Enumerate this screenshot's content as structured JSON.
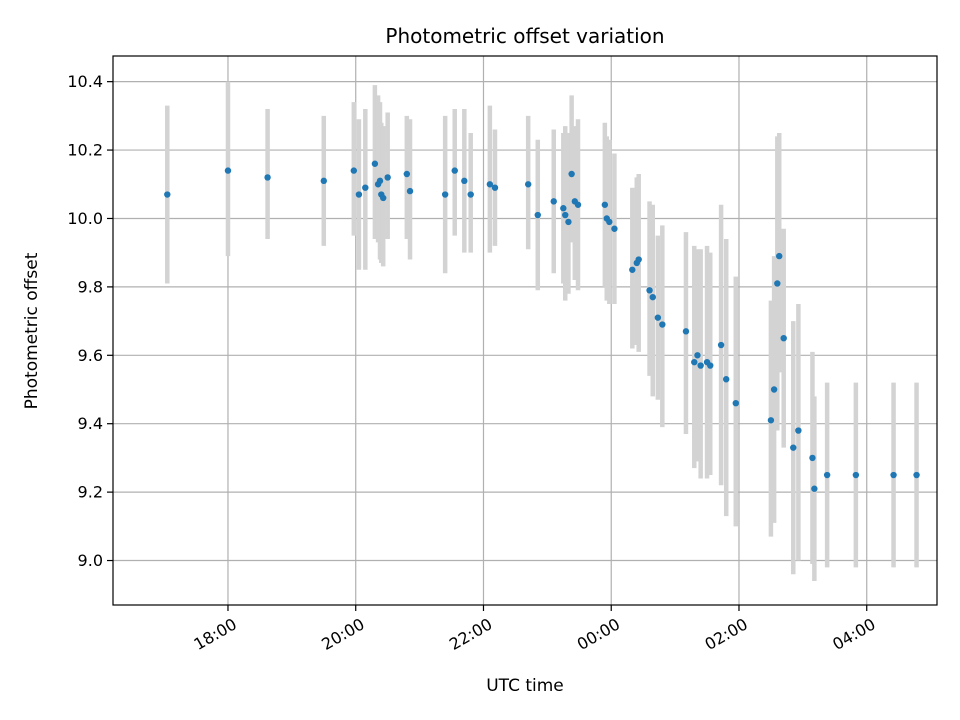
{
  "chart_data": {
    "type": "scatter",
    "title": "Photometric offset variation",
    "xlabel": "UTC time",
    "ylabel": "Photometric offset",
    "x_unit": "hours after 00:00 UTC of the first night (values > 24 are the next day)",
    "xlim": [
      16.2,
      29.1
    ],
    "ylim": [
      8.87,
      10.475
    ],
    "xticks": [
      {
        "value": 18,
        "label": "18:00"
      },
      {
        "value": 20,
        "label": "20:00"
      },
      {
        "value": 22,
        "label": "22:00"
      },
      {
        "value": 24,
        "label": "00:00"
      },
      {
        "value": 26,
        "label": "02:00"
      },
      {
        "value": 28,
        "label": "04:00"
      }
    ],
    "yticks": [
      {
        "value": 9.0,
        "label": "9.0"
      },
      {
        "value": 9.2,
        "label": "9.2"
      },
      {
        "value": 9.4,
        "label": "9.4"
      },
      {
        "value": 9.6,
        "label": "9.6"
      },
      {
        "value": 9.8,
        "label": "9.8"
      },
      {
        "value": 10.0,
        "label": "10.0"
      },
      {
        "value": 10.2,
        "label": "10.2"
      },
      {
        "value": 10.4,
        "label": "10.4"
      }
    ],
    "grid": true,
    "legend": "none",
    "colors": {
      "point": "#1f77b4",
      "errorbar": "#d3d3d3",
      "grid": "#b0b0b0"
    },
    "series": [
      {
        "points": [
          {
            "x": 17.05,
            "y": 10.07,
            "lo": 9.81,
            "hi": 10.33
          },
          {
            "x": 18.0,
            "y": 10.14,
            "lo": 9.89,
            "hi": 10.4
          },
          {
            "x": 18.62,
            "y": 10.12,
            "lo": 9.94,
            "hi": 10.32
          },
          {
            "x": 19.5,
            "y": 10.11,
            "lo": 9.92,
            "hi": 10.3
          },
          {
            "x": 19.97,
            "y": 10.14,
            "lo": 9.95,
            "hi": 10.34
          },
          {
            "x": 20.05,
            "y": 10.07,
            "lo": 9.85,
            "hi": 10.29
          },
          {
            "x": 20.15,
            "y": 10.09,
            "lo": 9.85,
            "hi": 10.32
          },
          {
            "x": 20.3,
            "y": 10.16,
            "lo": 9.94,
            "hi": 10.39
          },
          {
            "x": 20.35,
            "y": 10.1,
            "lo": 9.93,
            "hi": 10.36
          },
          {
            "x": 20.38,
            "y": 10.11,
            "lo": 9.88,
            "hi": 10.34
          },
          {
            "x": 20.4,
            "y": 10.07,
            "lo": 9.87,
            "hi": 10.28
          },
          {
            "x": 20.43,
            "y": 10.06,
            "lo": 9.86,
            "hi": 10.27
          },
          {
            "x": 20.5,
            "y": 10.12,
            "lo": 9.94,
            "hi": 10.31
          },
          {
            "x": 20.8,
            "y": 10.13,
            "lo": 9.94,
            "hi": 10.3
          },
          {
            "x": 20.85,
            "y": 10.08,
            "lo": 9.88,
            "hi": 10.29
          },
          {
            "x": 21.4,
            "y": 10.07,
            "lo": 9.84,
            "hi": 10.3
          },
          {
            "x": 21.55,
            "y": 10.14,
            "lo": 9.95,
            "hi": 10.32
          },
          {
            "x": 21.7,
            "y": 10.11,
            "lo": 9.9,
            "hi": 10.32
          },
          {
            "x": 21.8,
            "y": 10.07,
            "lo": 9.9,
            "hi": 10.25
          },
          {
            "x": 22.1,
            "y": 10.1,
            "lo": 9.9,
            "hi": 10.33
          },
          {
            "x": 22.18,
            "y": 10.09,
            "lo": 9.92,
            "hi": 10.26
          },
          {
            "x": 22.7,
            "y": 10.1,
            "lo": 9.91,
            "hi": 10.3
          },
          {
            "x": 22.85,
            "y": 10.01,
            "lo": 9.79,
            "hi": 10.23
          },
          {
            "x": 23.1,
            "y": 10.05,
            "lo": 9.84,
            "hi": 10.26
          },
          {
            "x": 23.25,
            "y": 10.03,
            "lo": 9.81,
            "hi": 10.25
          },
          {
            "x": 23.28,
            "y": 10.01,
            "lo": 9.76,
            "hi": 10.27
          },
          {
            "x": 23.33,
            "y": 9.99,
            "lo": 9.78,
            "hi": 10.25
          },
          {
            "x": 23.38,
            "y": 10.13,
            "lo": 9.93,
            "hi": 10.36
          },
          {
            "x": 23.43,
            "y": 10.05,
            "lo": 9.82,
            "hi": 10.27
          },
          {
            "x": 23.48,
            "y": 10.04,
            "lo": 9.79,
            "hi": 10.29
          },
          {
            "x": 23.9,
            "y": 10.04,
            "lo": 9.8,
            "hi": 10.28
          },
          {
            "x": 23.93,
            "y": 10.0,
            "lo": 9.76,
            "hi": 10.24
          },
          {
            "x": 23.97,
            "y": 9.99,
            "lo": 9.75,
            "hi": 10.23
          },
          {
            "x": 24.05,
            "y": 9.97,
            "lo": 9.75,
            "hi": 10.19
          },
          {
            "x": 24.33,
            "y": 9.85,
            "lo": 9.62,
            "hi": 10.09
          },
          {
            "x": 24.4,
            "y": 9.87,
            "lo": 9.63,
            "hi": 10.12
          },
          {
            "x": 24.43,
            "y": 9.88,
            "lo": 9.61,
            "hi": 10.13
          },
          {
            "x": 24.6,
            "y": 9.79,
            "lo": 9.54,
            "hi": 10.05
          },
          {
            "x": 24.65,
            "y": 9.77,
            "lo": 9.48,
            "hi": 10.04
          },
          {
            "x": 24.73,
            "y": 9.71,
            "lo": 9.47,
            "hi": 9.95
          },
          {
            "x": 24.8,
            "y": 9.69,
            "lo": 9.39,
            "hi": 9.98
          },
          {
            "x": 25.17,
            "y": 9.67,
            "lo": 9.37,
            "hi": 9.96
          },
          {
            "x": 25.3,
            "y": 9.58,
            "lo": 9.27,
            "hi": 9.92
          },
          {
            "x": 25.35,
            "y": 9.6,
            "lo": 9.29,
            "hi": 9.91
          },
          {
            "x": 25.4,
            "y": 9.57,
            "lo": 9.24,
            "hi": 9.91
          },
          {
            "x": 25.5,
            "y": 9.58,
            "lo": 9.24,
            "hi": 9.92
          },
          {
            "x": 25.55,
            "y": 9.57,
            "lo": 9.25,
            "hi": 9.9
          },
          {
            "x": 25.72,
            "y": 9.63,
            "lo": 9.22,
            "hi": 10.04
          },
          {
            "x": 25.8,
            "y": 9.53,
            "lo": 9.13,
            "hi": 9.94
          },
          {
            "x": 25.95,
            "y": 9.46,
            "lo": 9.1,
            "hi": 9.83
          },
          {
            "x": 26.5,
            "y": 9.41,
            "lo": 9.07,
            "hi": 9.76
          },
          {
            "x": 26.55,
            "y": 9.5,
            "lo": 9.11,
            "hi": 9.89
          },
          {
            "x": 26.6,
            "y": 9.81,
            "lo": 9.38,
            "hi": 10.24
          },
          {
            "x": 26.63,
            "y": 9.89,
            "lo": 9.55,
            "hi": 10.25
          },
          {
            "x": 26.7,
            "y": 9.65,
            "lo": 9.33,
            "hi": 9.97
          },
          {
            "x": 26.85,
            "y": 9.33,
            "lo": 8.96,
            "hi": 9.7
          },
          {
            "x": 26.93,
            "y": 9.38,
            "lo": 9.0,
            "hi": 9.75
          },
          {
            "x": 27.15,
            "y": 9.3,
            "lo": 8.99,
            "hi": 9.61
          },
          {
            "x": 27.18,
            "y": 9.21,
            "lo": 8.94,
            "hi": 9.48
          },
          {
            "x": 27.38,
            "y": 9.25,
            "lo": 8.98,
            "hi": 9.52
          },
          {
            "x": 27.83,
            "y": 9.25,
            "lo": 8.98,
            "hi": 9.52
          },
          {
            "x": 28.42,
            "y": 9.25,
            "lo": 8.98,
            "hi": 9.52
          },
          {
            "x": 28.78,
            "y": 9.25,
            "lo": 8.98,
            "hi": 9.52
          }
        ]
      }
    ]
  }
}
